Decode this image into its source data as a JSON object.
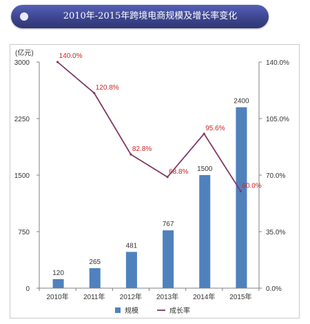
{
  "title": "2010年-2015年跨境电商规模及增长率变化",
  "colors": {
    "bar": "#4f81bd",
    "line": "#7d3a65",
    "line_label": "#d02020",
    "axis": "#7f7f7f",
    "text": "#333333"
  },
  "chart_data": {
    "type": "bar",
    "unit_label": "(亿元)",
    "categories": [
      "2010年",
      "2011年",
      "2012年",
      "2013年",
      "2014年",
      "2015年"
    ],
    "ylim": [
      0,
      3000
    ],
    "yticks": [
      "0",
      "750",
      "1500",
      "2250",
      "3000"
    ],
    "y2lim": [
      0,
      140
    ],
    "y2ticks": [
      "0.0%",
      "35.0%",
      "70.0%",
      "105.0%",
      "140.0%"
    ],
    "series": [
      {
        "name": "规模",
        "type": "bar",
        "axis": "left",
        "values": [
          120,
          265,
          481,
          767,
          1500,
          2400
        ],
        "labels": [
          "120",
          "265",
          "481",
          "767",
          "1500",
          "2400"
        ]
      },
      {
        "name": "成长率",
        "type": "line",
        "axis": "right",
        "values": [
          140.0,
          120.8,
          82.8,
          68.8,
          95.6,
          60.0
        ],
        "labels": [
          "140.0%",
          "120.8%",
          "82.8%",
          "68.8%",
          "95.6%",
          "60.0%"
        ]
      }
    ],
    "legend": [
      "规模",
      "成长率"
    ],
    "legend_position": "bottom"
  }
}
